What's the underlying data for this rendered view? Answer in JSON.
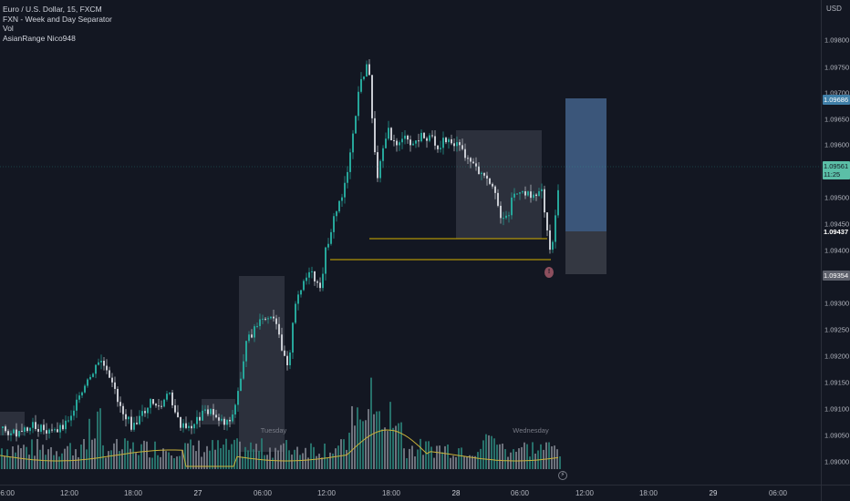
{
  "legend": {
    "symbol": "Euro / U.S. Dollar, 15, FXCM",
    "indicator_1": "FXN - Week and Day Separator",
    "indicator_2": "Vol",
    "indicator_3": "AsianRange Nico948"
  },
  "price_axis": {
    "currency": "USD",
    "ticks": [
      "1.09800",
      "1.09750",
      "1.09700",
      "1.09650",
      "1.09600",
      "1.09550",
      "1.09500",
      "1.09450",
      "1.09400",
      "1.09350",
      "1.09300",
      "1.09250",
      "1.09200",
      "1.09150",
      "1.09100",
      "1.09050",
      "1.09000"
    ],
    "badges": {
      "target": "1.09686",
      "current": "1.09561",
      "countdown": "11:25",
      "stop": "1.09437",
      "low": "1.09354"
    }
  },
  "time_axis": {
    "ticks": [
      "06:00",
      "12:00",
      "18:00",
      "27",
      "06:00",
      "12:00",
      "18:00",
      "28",
      "06:00",
      "12:00",
      "18:00",
      "29",
      "06:00"
    ]
  },
  "day_labels": {
    "tuesday": "Tuesday",
    "wednesday": "Wednesday"
  },
  "event_marker": "!",
  "alert_icon": "⚡",
  "colors": {
    "background": "#131722",
    "up": "#26a69a",
    "down": "#c8cbd2",
    "session_box": "#363a45",
    "level_line": "#d4b000",
    "volume_ma": "#c9b23a",
    "target_zone": "#3d5a80",
    "stop_zone": "#363a45",
    "current_badge": "#5bbfa7",
    "target_badge": "#3f7fa8"
  },
  "chart_data": {
    "type": "candlestick",
    "ylim": [
      1.08985,
      1.0983
    ],
    "note_visible_price_range": "1.08985-1.09830"
  }
}
